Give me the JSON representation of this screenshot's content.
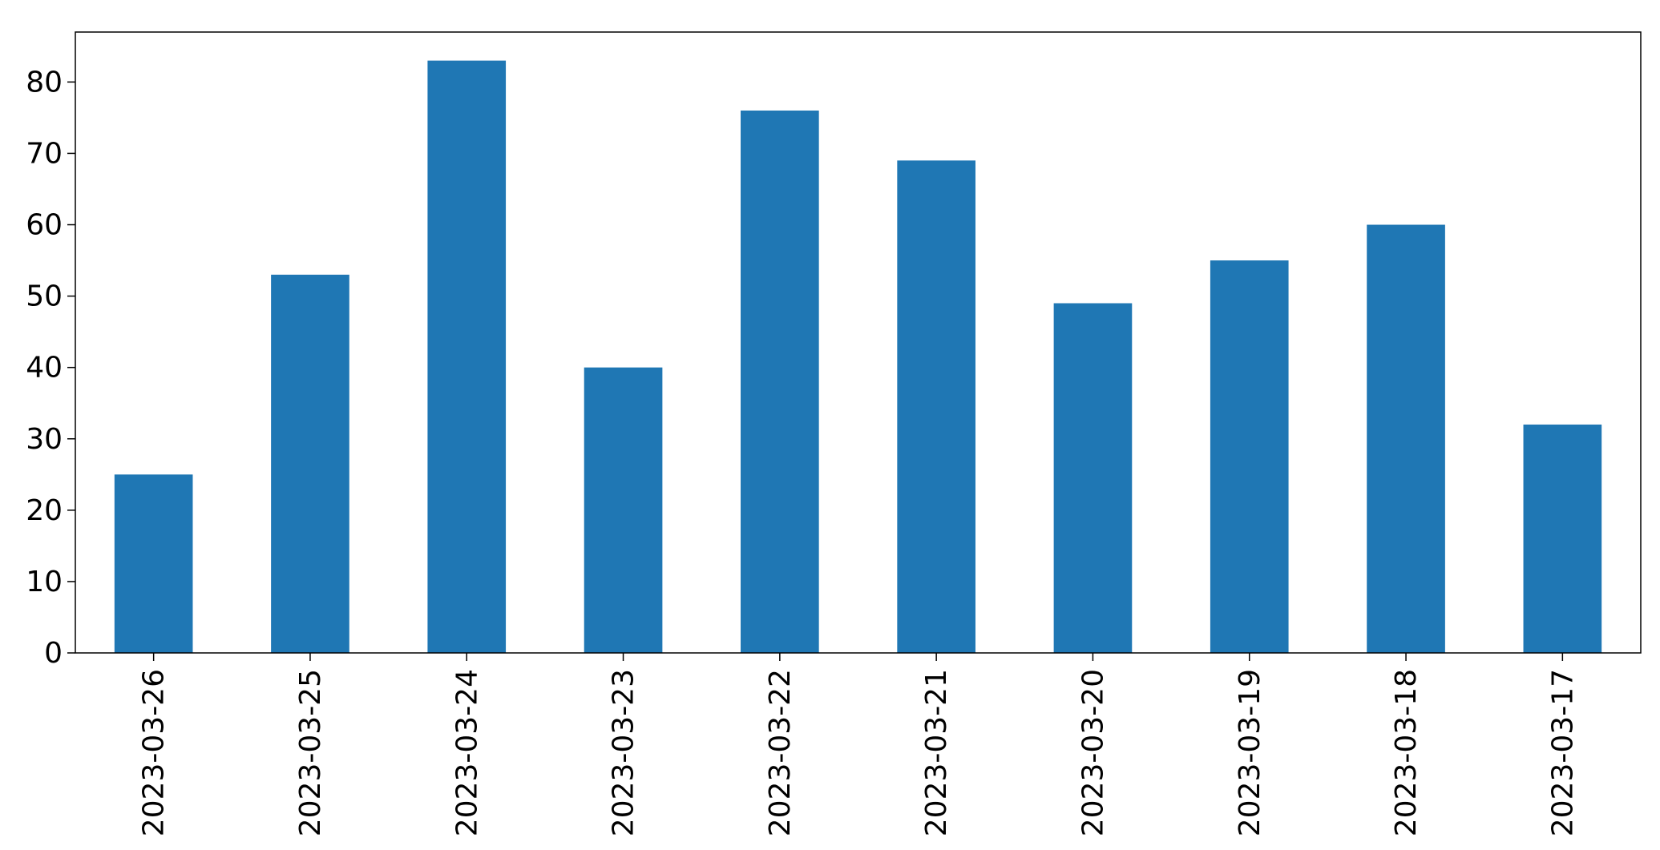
{
  "chart_data": {
    "type": "bar",
    "title": "",
    "xlabel": "",
    "ylabel": "",
    "categories": [
      "2023-03-26",
      "2023-03-25",
      "2023-03-24",
      "2023-03-23",
      "2023-03-22",
      "2023-03-21",
      "2023-03-20",
      "2023-03-19",
      "2023-03-18",
      "2023-03-17"
    ],
    "values": [
      25,
      53,
      83,
      40,
      76,
      69,
      49,
      55,
      60,
      32
    ],
    "ylim": [
      0,
      87
    ],
    "yticks": [
      0,
      10,
      20,
      30,
      40,
      50,
      60,
      70,
      80
    ],
    "bar_color": "#1f77b4",
    "grid": false,
    "legend": "none"
  }
}
